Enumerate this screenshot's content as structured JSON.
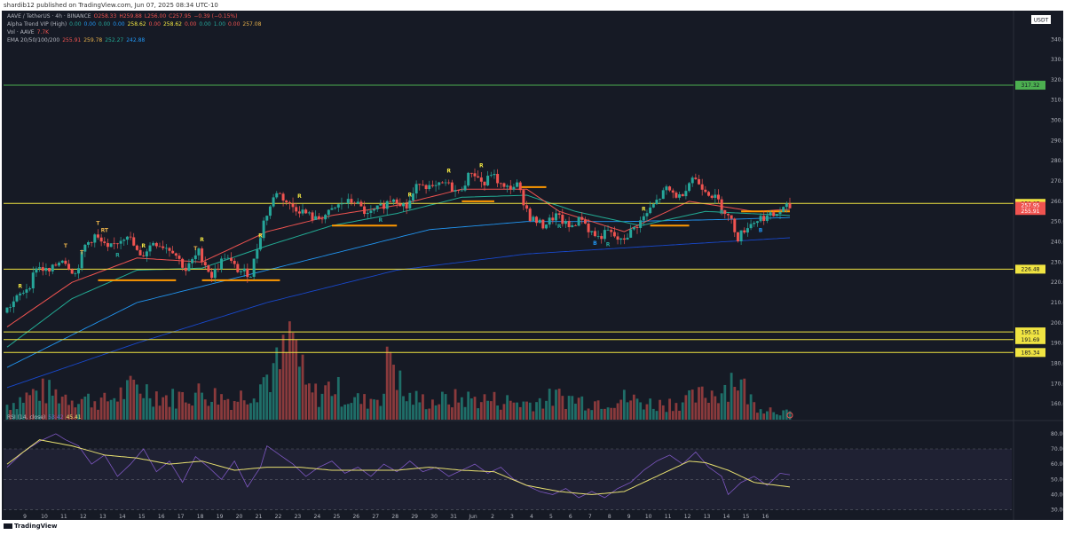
{
  "header": {
    "publish_text": "shardib12 published on TradingView.com, Jun 07, 2025 08:34 UTC-10"
  },
  "legend": {
    "symbol_line": [
      "AAVE / TetherUS · 4h · BINANCE",
      "O258.33",
      "H259.88",
      "L256.00",
      "C257.95",
      "−0.39 (−0.15%)"
    ],
    "alpha_trend_line": [
      "Alpha Trend VIP (High)",
      "0.00",
      "0.00",
      "0.00",
      "0.00",
      "258.62",
      "0.00",
      "258.62",
      "0.00",
      "0.00",
      "1.00",
      "0.00",
      "257.08"
    ],
    "vol_line": [
      "Vol · AAVE",
      "7.7K"
    ],
    "ema_line": [
      "EMA 20/50/100/200",
      "255.91",
      "259.78",
      "252.27",
      "242.88"
    ],
    "rsi_line": [
      "RSI (14, close)",
      "53.42",
      "45.41"
    ]
  },
  "colors": {
    "background": "#161a25",
    "up": "#26a69a",
    "down": "#ef5350",
    "ema20": "#ef5350",
    "ema50": "#22ab94",
    "ema100": "#2196f3",
    "ema200": "#1848cc",
    "rsi": "#7e57c2",
    "rsi_ma": "#e8e070",
    "level_green": "#4caf50",
    "level_yellow": "#f0e442",
    "alpha_trend_line": "#ff9800"
  },
  "currency_label": "USDT",
  "footer": {
    "brand": "TradingView"
  },
  "chart_data": {
    "type": "candlestick",
    "symbol": "AAVE / TetherUS",
    "timeframe": "4h",
    "exchange": "BINANCE",
    "ylim": [
      157,
      348
    ],
    "y_ticks": [
      160,
      170,
      180,
      190,
      200,
      210,
      220,
      230,
      240,
      250,
      260,
      270,
      280,
      290,
      300,
      310,
      320,
      330,
      340
    ],
    "x_ticks": [
      "9",
      "10",
      "11",
      "12",
      "13",
      "14",
      "15",
      "16",
      "17",
      "18",
      "19",
      "20",
      "21",
      "22",
      "23",
      "24",
      "25",
      "26",
      "27",
      "28",
      "29",
      "30",
      "31",
      "Jun",
      "2",
      "3",
      "4",
      "5",
      "6",
      "7",
      "8",
      "9",
      "10",
      "11",
      "12",
      "13",
      "14",
      "15",
      "16"
    ],
    "price_anchors": [
      [
        0,
        205
      ],
      [
        4,
        212
      ],
      [
        8,
        219
      ],
      [
        10,
        228
      ],
      [
        14,
        225
      ],
      [
        18,
        232
      ],
      [
        22,
        224
      ],
      [
        25,
        238
      ],
      [
        28,
        243
      ],
      [
        32,
        236
      ],
      [
        38,
        244
      ],
      [
        42,
        232
      ],
      [
        46,
        240
      ],
      [
        52,
        236
      ],
      [
        56,
        226
      ],
      [
        60,
        235
      ],
      [
        64,
        223
      ],
      [
        68,
        233
      ],
      [
        72,
        226
      ],
      [
        76,
        224
      ],
      [
        80,
        250
      ],
      [
        84,
        265
      ],
      [
        88,
        258
      ],
      [
        92,
        255
      ],
      [
        96,
        251
      ],
      [
        100,
        254
      ],
      [
        104,
        259
      ],
      [
        108,
        260
      ],
      [
        112,
        253
      ],
      [
        116,
        257
      ],
      [
        120,
        262
      ],
      [
        124,
        257
      ],
      [
        128,
        270
      ],
      [
        132,
        266
      ],
      [
        136,
        269
      ],
      [
        140,
        264
      ],
      [
        144,
        275
      ],
      [
        148,
        268
      ],
      [
        150,
        274
      ],
      [
        154,
        266
      ],
      [
        158,
        268
      ],
      [
        162,
        252
      ],
      [
        166,
        248
      ],
      [
        170,
        253
      ],
      [
        174,
        247
      ],
      [
        178,
        252
      ],
      [
        180,
        246
      ],
      [
        183,
        242
      ],
      [
        186,
        245
      ],
      [
        190,
        240
      ],
      [
        193,
        245
      ],
      [
        196,
        250
      ],
      [
        200,
        258
      ],
      [
        204,
        266
      ],
      [
        208,
        262
      ],
      [
        212,
        272
      ],
      [
        216,
        266
      ],
      [
        220,
        260
      ],
      [
        224,
        250
      ],
      [
        226,
        242
      ],
      [
        229,
        248
      ],
      [
        233,
        252
      ],
      [
        237,
        253
      ],
      [
        241,
        257
      ]
    ],
    "candle_count": 242,
    "levels": [
      {
        "value": 317.32,
        "label": "317.32",
        "color": "level_green"
      },
      {
        "value": 258.97,
        "label": "258.97",
        "color": "level_yellow"
      },
      {
        "value": 226.48,
        "label": "226.48",
        "color": "level_yellow"
      },
      {
        "value": 195.51,
        "label": "195.51",
        "color": "level_yellow"
      },
      {
        "value": 191.69,
        "label": "191.69",
        "color": "level_yellow"
      },
      {
        "value": 185.34,
        "label": "185.34",
        "color": "level_yellow"
      }
    ],
    "price_tags": [
      {
        "value": 257.95,
        "label": "257.95",
        "color": "down"
      },
      {
        "value": 255.91,
        "label": "255.91",
        "color": "down"
      }
    ],
    "ema_anchors": {
      "ema20": [
        [
          0,
          198
        ],
        [
          20,
          220
        ],
        [
          40,
          232
        ],
        [
          60,
          230
        ],
        [
          80,
          245
        ],
        [
          100,
          253
        ],
        [
          120,
          258
        ],
        [
          140,
          266
        ],
        [
          160,
          266
        ],
        [
          170,
          255
        ],
        [
          190,
          245
        ],
        [
          210,
          260
        ],
        [
          230,
          255
        ],
        [
          241,
          256
        ]
      ],
      "ema50": [
        [
          0,
          188
        ],
        [
          20,
          212
        ],
        [
          40,
          226
        ],
        [
          60,
          227
        ],
        [
          80,
          238
        ],
        [
          100,
          248
        ],
        [
          120,
          254
        ],
        [
          140,
          262
        ],
        [
          160,
          263
        ],
        [
          175,
          255
        ],
        [
          195,
          248
        ],
        [
          215,
          255
        ],
        [
          241,
          253
        ]
      ],
      "ema100": [
        [
          0,
          178
        ],
        [
          40,
          210
        ],
        [
          80,
          226
        ],
        [
          100,
          234
        ],
        [
          130,
          246
        ],
        [
          160,
          250
        ],
        [
          190,
          250
        ],
        [
          220,
          251
        ],
        [
          241,
          252
        ]
      ],
      "ema200": [
        [
          0,
          168
        ],
        [
          40,
          190
        ],
        [
          80,
          210
        ],
        [
          120,
          226
        ],
        [
          160,
          234
        ],
        [
          200,
          238
        ],
        [
          241,
          242
        ]
      ]
    },
    "alpha_trend_segments": [
      [
        28,
        52,
        221
      ],
      [
        60,
        84,
        221
      ],
      [
        100,
        120,
        248
      ],
      [
        140,
        150,
        260
      ],
      [
        158,
        166,
        267
      ],
      [
        198,
        210,
        248
      ],
      [
        226,
        241,
        255
      ]
    ],
    "markers": [
      {
        "i": 4,
        "text": "R",
        "color": "#f0e442",
        "above": true
      },
      {
        "i": 18,
        "text": "T",
        "color": "#e6b04a",
        "above": true
      },
      {
        "i": 23,
        "text": "T",
        "color": "#e6b04a",
        "above": true
      },
      {
        "i": 28,
        "text": "T",
        "color": "#e6b04a",
        "above": true
      },
      {
        "i": 30,
        "text": "RT",
        "color": "#e6b04a",
        "above": true
      },
      {
        "i": 34,
        "text": "R",
        "color": "#26a69a",
        "above": false
      },
      {
        "i": 42,
        "text": "R",
        "color": "#f0e442",
        "above": true
      },
      {
        "i": 58,
        "text": "T",
        "color": "#e6b04a",
        "above": true
      },
      {
        "i": 60,
        "text": "R",
        "color": "#f0e442",
        "above": true
      },
      {
        "i": 78,
        "text": "R",
        "color": "#f0e442",
        "above": true
      },
      {
        "i": 90,
        "text": "R",
        "color": "#f0e442",
        "above": true
      },
      {
        "i": 115,
        "text": "R",
        "color": "#26a69a",
        "above": false
      },
      {
        "i": 124,
        "text": "R",
        "color": "#f0e442",
        "above": true
      },
      {
        "i": 136,
        "text": "R",
        "color": "#f0e442",
        "above": true
      },
      {
        "i": 146,
        "text": "R",
        "color": "#f0e442",
        "above": true
      },
      {
        "i": 170,
        "text": "R",
        "color": "#26a69a",
        "above": false
      },
      {
        "i": 181,
        "text": "B",
        "color": "#2196f3",
        "above": false
      },
      {
        "i": 185,
        "text": "R",
        "color": "#26a69a",
        "above": false
      },
      {
        "i": 196,
        "text": "R",
        "color": "#f0e442",
        "above": true
      },
      {
        "i": 220,
        "text": "R",
        "color": "#26a69a",
        "above": false
      },
      {
        "i": 232,
        "text": "B",
        "color": "#2196f3",
        "above": false
      }
    ],
    "rsi": {
      "ylim": [
        28,
        84
      ],
      "y_ticks": [
        30,
        40,
        50,
        60,
        70,
        80
      ],
      "upper_band": 70,
      "lower_band": 30,
      "mid": 50,
      "anchors": [
        [
          0,
          58
        ],
        [
          5,
          68
        ],
        [
          10,
          75
        ],
        [
          15,
          80
        ],
        [
          18,
          76
        ],
        [
          22,
          72
        ],
        [
          26,
          60
        ],
        [
          30,
          66
        ],
        [
          34,
          52
        ],
        [
          38,
          60
        ],
        [
          42,
          70
        ],
        [
          46,
          55
        ],
        [
          50,
          62
        ],
        [
          54,
          48
        ],
        [
          58,
          65
        ],
        [
          62,
          58
        ],
        [
          66,
          50
        ],
        [
          70,
          62
        ],
        [
          74,
          45
        ],
        [
          78,
          58
        ],
        [
          80,
          72
        ],
        [
          84,
          66
        ],
        [
          88,
          60
        ],
        [
          92,
          52
        ],
        [
          96,
          58
        ],
        [
          100,
          62
        ],
        [
          104,
          54
        ],
        [
          108,
          58
        ],
        [
          112,
          52
        ],
        [
          116,
          60
        ],
        [
          120,
          55
        ],
        [
          124,
          62
        ],
        [
          128,
          55
        ],
        [
          132,
          58
        ],
        [
          136,
          52
        ],
        [
          140,
          56
        ],
        [
          144,
          60
        ],
        [
          148,
          54
        ],
        [
          152,
          58
        ],
        [
          156,
          50
        ],
        [
          160,
          46
        ],
        [
          164,
          42
        ],
        [
          168,
          40
        ],
        [
          172,
          44
        ],
        [
          176,
          38
        ],
        [
          180,
          42
        ],
        [
          184,
          38
        ],
        [
          188,
          44
        ],
        [
          192,
          48
        ],
        [
          196,
          56
        ],
        [
          200,
          62
        ],
        [
          204,
          66
        ],
        [
          208,
          60
        ],
        [
          212,
          68
        ],
        [
          216,
          58
        ],
        [
          220,
          52
        ],
        [
          222,
          40
        ],
        [
          226,
          48
        ],
        [
          230,
          52
        ],
        [
          234,
          46
        ],
        [
          238,
          54
        ],
        [
          241,
          53
        ]
      ],
      "ma_anchors": [
        [
          0,
          60
        ],
        [
          10,
          76
        ],
        [
          20,
          72
        ],
        [
          30,
          66
        ],
        [
          40,
          64
        ],
        [
          50,
          60
        ],
        [
          60,
          62
        ],
        [
          70,
          56
        ],
        [
          80,
          58
        ],
        [
          90,
          58
        ],
        [
          100,
          56
        ],
        [
          110,
          56
        ],
        [
          120,
          56
        ],
        [
          130,
          58
        ],
        [
          140,
          56
        ],
        [
          150,
          55
        ],
        [
          160,
          46
        ],
        [
          170,
          42
        ],
        [
          180,
          40
        ],
        [
          190,
          42
        ],
        [
          200,
          52
        ],
        [
          210,
          62
        ],
        [
          215,
          61
        ],
        [
          222,
          56
        ],
        [
          230,
          48
        ],
        [
          241,
          45
        ]
      ]
    },
    "volume_anchors": [
      [
        0,
        20
      ],
      [
        10,
        38
      ],
      [
        20,
        30
      ],
      [
        30,
        24
      ],
      [
        40,
        44
      ],
      [
        50,
        28
      ],
      [
        60,
        36
      ],
      [
        70,
        26
      ],
      [
        76,
        42
      ],
      [
        80,
        58
      ],
      [
        84,
        70
      ],
      [
        88,
        110
      ],
      [
        92,
        40
      ],
      [
        96,
        32
      ],
      [
        100,
        46
      ],
      [
        104,
        30
      ],
      [
        110,
        24
      ],
      [
        116,
        36
      ],
      [
        118,
        100
      ],
      [
        122,
        30
      ],
      [
        130,
        24
      ],
      [
        140,
        28
      ],
      [
        150,
        26
      ],
      [
        160,
        22
      ],
      [
        170,
        30
      ],
      [
        180,
        24
      ],
      [
        190,
        28
      ],
      [
        200,
        20
      ],
      [
        210,
        26
      ],
      [
        220,
        40
      ],
      [
        224,
        60
      ],
      [
        230,
        20
      ],
      [
        241,
        8
      ]
    ]
  }
}
